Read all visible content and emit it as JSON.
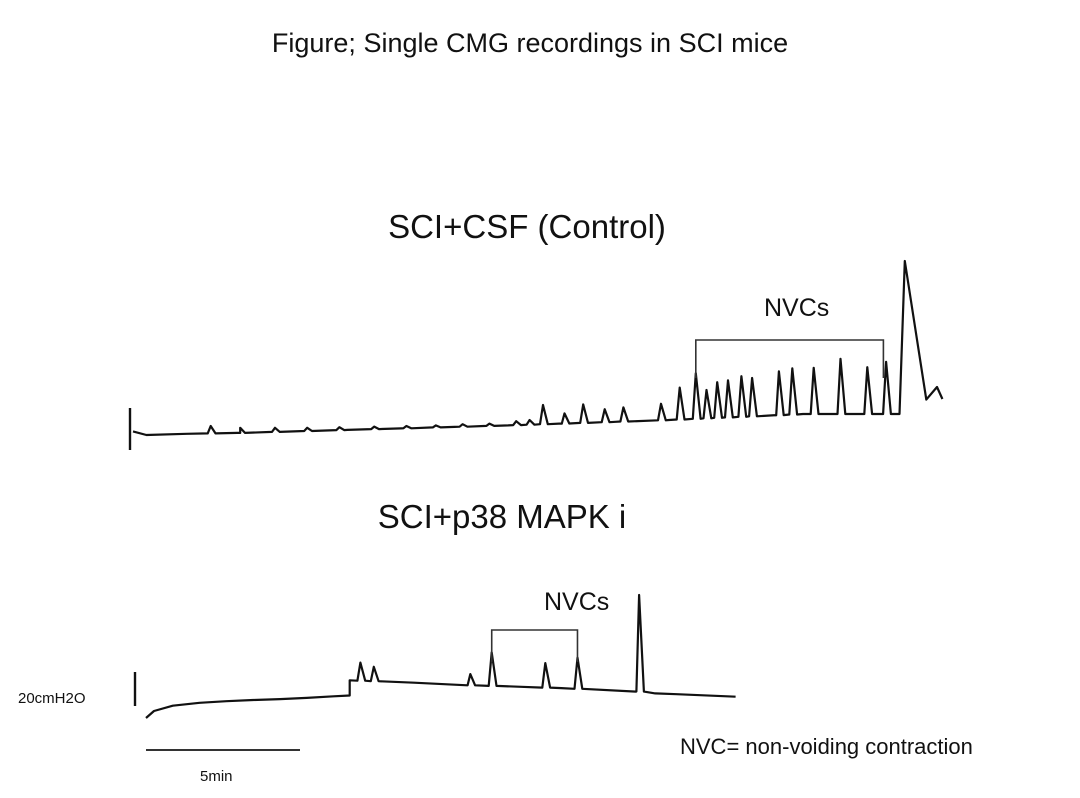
{
  "figure_title": "Figure; Single CMG recordings in SCI mice",
  "footnote": "NVC= non-voiding contraction",
  "colors": {
    "trace": "#111111",
    "background": "#ffffff"
  },
  "chart_data": [
    {
      "type": "line",
      "title": "SCI+CSF (Control)",
      "xlabel": "",
      "ylabel": "",
      "bracket_label": "NVCs",
      "units": {
        "x": "min",
        "y": "cmH2O"
      },
      "series": [
        {
          "values": [
            [
              0.0,
              0.6
            ],
            [
              0.5,
              0.0
            ],
            [
              2.0,
              0.2
            ],
            [
              4.0,
              0.35
            ],
            [
              6.0,
              0.6
            ],
            [
              8.0,
              0.85
            ],
            [
              10.0,
              1.1
            ],
            [
              12.0,
              1.35
            ],
            [
              14.0,
              1.6
            ],
            [
              16.0,
              1.9
            ],
            [
              18.0,
              2.2
            ],
            [
              20.0,
              2.5
            ],
            [
              22.0,
              2.9
            ],
            [
              24.0,
              3.3
            ],
            [
              25.0,
              3.5
            ]
          ],
          "spikes": [
            [
              2.9,
              1.5
            ],
            [
              4.0,
              1.2
            ],
            [
              5.3,
              1.2
            ],
            [
              6.5,
              1.2
            ],
            [
              7.7,
              1.3
            ],
            [
              9.0,
              1.4
            ],
            [
              10.2,
              1.5
            ],
            [
              11.3,
              1.6
            ],
            [
              12.3,
              1.8
            ],
            [
              13.3,
              1.9
            ],
            [
              14.3,
              2.3
            ],
            [
              14.8,
              2.5
            ],
            [
              15.3,
              5.0
            ],
            [
              16.1,
              3.6
            ],
            [
              16.8,
              5.1
            ],
            [
              17.6,
              4.3
            ],
            [
              18.3,
              4.6
            ],
            [
              19.7,
              5.2
            ],
            [
              20.4,
              7.9
            ],
            [
              21.0,
              10.3
            ],
            [
              21.4,
              7.5
            ],
            [
              21.8,
              8.8
            ],
            [
              22.2,
              9.1
            ],
            [
              22.7,
              9.8
            ],
            [
              23.1,
              9.5
            ],
            [
              24.1,
              10.6
            ],
            [
              24.6,
              11.1
            ],
            [
              25.4,
              11.2
            ],
            [
              26.4,
              12.7
            ],
            [
              27.4,
              11.3
            ],
            [
              28.1,
              12.2
            ]
          ],
          "void_peak": [
            28.8,
            29.0
          ],
          "end": [
            [
              29.6,
              5.9
            ],
            [
              30.0,
              8.0
            ],
            [
              30.2,
              6.0
            ]
          ]
        }
      ],
      "nvc_range": [
        21.0,
        28.0
      ]
    },
    {
      "type": "line",
      "title": "SCI+p38 MAPK i",
      "xlabel": "",
      "ylabel": "",
      "bracket_label": "NVCs",
      "units": {
        "x": "min",
        "y": "cmH2O"
      },
      "series": [
        {
          "values": [
            [
              0.0,
              0.0
            ],
            [
              0.3,
              1.7
            ],
            [
              1.0,
              3.0
            ],
            [
              2.0,
              3.7
            ],
            [
              3.0,
              4.1
            ],
            [
              4.0,
              4.4
            ],
            [
              5.0,
              4.6
            ],
            [
              6.0,
              4.9
            ],
            [
              7.0,
              5.3
            ],
            [
              7.6,
              5.5
            ],
            [
              7.6,
              9.2
            ],
            [
              10.0,
              8.6
            ],
            [
              12.0,
              8.0
            ],
            [
              14.0,
              7.6
            ],
            [
              15.5,
              7.3
            ],
            [
              18.3,
              6.5
            ],
            [
              19.0,
              6.0
            ],
            [
              19.8,
              5.8
            ],
            [
              22.0,
              5.2
            ]
          ],
          "spikes": [
            [
              8.0,
              13.5
            ],
            [
              8.5,
              12.5
            ],
            [
              12.1,
              10.7
            ],
            [
              12.9,
              16.0
            ],
            [
              14.9,
              13.4
            ],
            [
              16.1,
              14.7
            ],
            [
              18.4,
              30.0
            ]
          ]
        }
      ],
      "nvc_range": [
        12.9,
        16.1
      ],
      "scale_bar": {
        "pressure_label": "20cmH2O",
        "time_label": "5min"
      }
    }
  ]
}
